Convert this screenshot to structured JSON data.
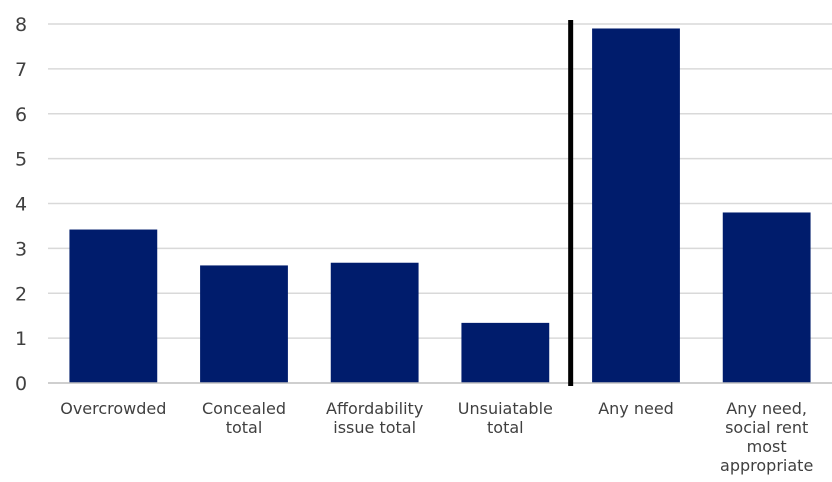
{
  "chart_data": {
    "type": "bar",
    "categories": [
      [
        "Overcrowded"
      ],
      [
        "Concealed",
        "total"
      ],
      [
        "Affordability",
        "issue total"
      ],
      [
        "Unsuiatable",
        "total"
      ],
      [
        "Any need"
      ],
      [
        "Any need,",
        "social rent",
        "most",
        "appropriate"
      ]
    ],
    "values": [
      3.42,
      2.62,
      2.68,
      1.34,
      7.9,
      3.8
    ],
    "title": "",
    "xlabel": "",
    "ylabel": "",
    "ylim": [
      0,
      8
    ],
    "yticks": [
      0,
      1,
      2,
      3,
      4,
      5,
      6,
      7,
      8
    ],
    "grid": true,
    "legend": "none",
    "bar_color": "#001c6c",
    "divider_color": "#000000",
    "divider_after_category": 4
  }
}
